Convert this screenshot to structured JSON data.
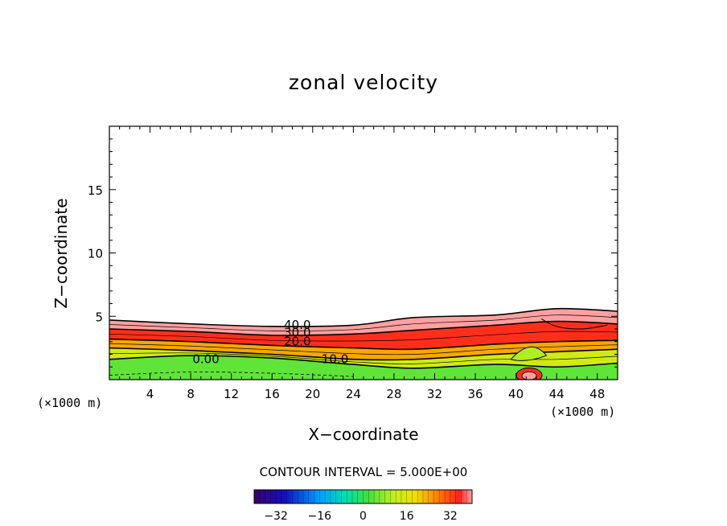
{
  "chart_data": {
    "type": "heatmap",
    "title": "zonal velocity",
    "xlabel": "X−coordinate",
    "ylabel": "Z−coordinate",
    "x_unit": "(×1000 m)",
    "x_range": [
      0,
      50
    ],
    "y_range": [
      0,
      20
    ],
    "x_ticks": [
      "4",
      "8",
      "12",
      "16",
      "20",
      "24",
      "28",
      "32",
      "36",
      "40",
      "44",
      "48"
    ],
    "y_ticks": [
      "5",
      "10",
      "15"
    ],
    "contour_interval_text": "CONTOUR INTERVAL = 5.000E+00",
    "contour_interval": 5,
    "contour_labels": [
      "40.0",
      "30.0",
      "20.0",
      "0.00",
      "10.0"
    ],
    "colorbar": {
      "range": [
        -40,
        40
      ],
      "ticks": [
        "−32",
        "−16",
        "0",
        "16",
        "32"
      ],
      "colormap": "rainbow"
    },
    "velocity_layers": [
      {
        "value": 40,
        "top_km": [
          4.7,
          4.4,
          4.2,
          4.3,
          4.9,
          5.1,
          5.6,
          5.4
        ]
      },
      {
        "value": 30,
        "top_km": [
          4.0,
          3.8,
          3.5,
          3.6,
          3.9,
          4.3,
          4.6,
          4.4
        ]
      },
      {
        "value": 20,
        "top_km": [
          3.2,
          3.0,
          2.7,
          2.5,
          2.4,
          2.8,
          3.0,
          3.1
        ]
      },
      {
        "value": 10,
        "top_km": [
          2.5,
          2.3,
          2.0,
          1.6,
          1.6,
          2.0,
          2.2,
          2.4
        ]
      },
      {
        "value": 0,
        "top_km": [
          1.6,
          1.9,
          1.7,
          1.2,
          0.9,
          1.2,
          1.0,
          1.3
        ]
      }
    ],
    "layer_x_km": [
      0,
      8,
      16,
      24,
      30,
      38,
      44,
      50
    ],
    "grid": false
  }
}
